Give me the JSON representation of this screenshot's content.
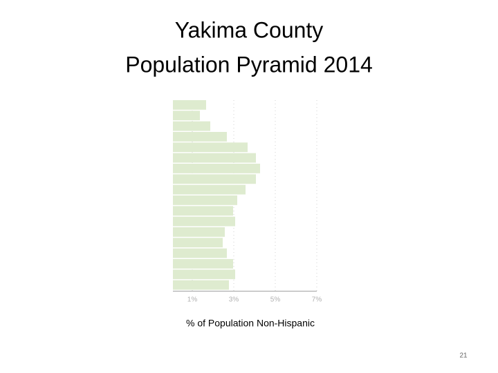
{
  "chart_data": {
    "type": "hbar",
    "title": [
      "Yakima County",
      "Population Pyramid 2014"
    ],
    "xlabel": "% of Population Non-Hispanic",
    "categories": [
      null,
      null,
      null,
      null,
      null,
      null,
      null,
      null,
      null,
      null,
      null,
      null,
      null,
      null,
      null,
      null,
      null,
      null
    ],
    "values": [
      1.6,
      1.3,
      1.8,
      2.6,
      3.6,
      4.0,
      4.2,
      4.0,
      3.5,
      3.1,
      2.9,
      3.0,
      2.5,
      2.4,
      2.6,
      2.9,
      3.0,
      2.7
    ],
    "color": "#deebcf",
    "xlim": [
      0,
      7
    ],
    "xticks": [
      {
        "value": 1,
        "label": "1%"
      },
      {
        "value": 3,
        "label": "3%"
      },
      {
        "value": 5,
        "label": "5%"
      },
      {
        "value": 7,
        "label": "7%"
      }
    ],
    "grid": true
  },
  "slide": {
    "page_number": "21"
  }
}
